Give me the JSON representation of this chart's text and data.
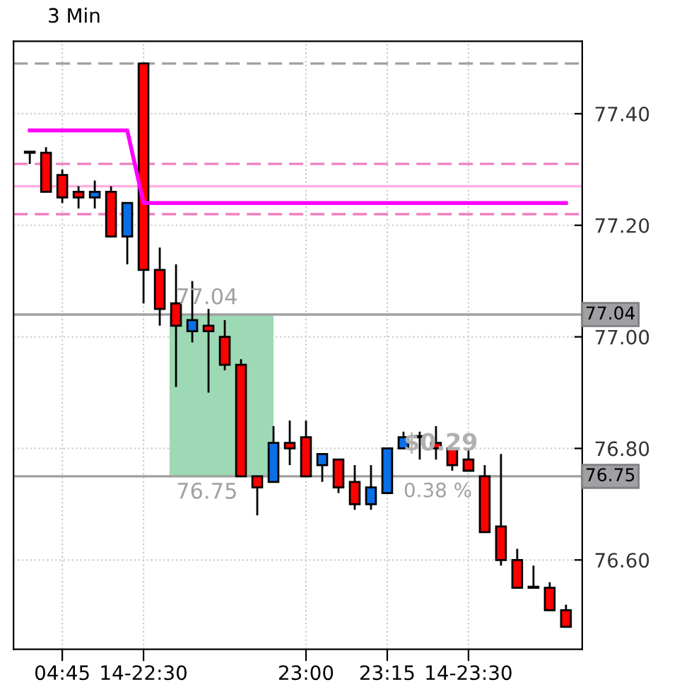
{
  "chart_data": {
    "type": "candlestick",
    "title": "3 Min",
    "categories": [
      null,
      null,
      "04:45",
      null,
      null,
      null,
      null,
      "14-22:30",
      null,
      null,
      null,
      null,
      null,
      null,
      null,
      null,
      null,
      "23:00",
      null,
      null,
      null,
      null,
      "23:15",
      null,
      null,
      null,
      null,
      "14-23:30",
      null,
      null,
      null,
      null,
      null,
      null
    ],
    "ohlc": [
      [
        77.33,
        77.33,
        77.31,
        77.33
      ],
      [
        77.33,
        77.34,
        77.26,
        77.26
      ],
      [
        77.29,
        77.3,
        77.24,
        77.25
      ],
      [
        77.26,
        77.27,
        77.23,
        77.25
      ],
      [
        77.25,
        77.28,
        77.23,
        77.26
      ],
      [
        77.26,
        77.27,
        77.18,
        77.18
      ],
      [
        77.18,
        77.24,
        77.13,
        77.24
      ],
      [
        77.49,
        77.49,
        77.06,
        77.12
      ],
      [
        77.12,
        77.16,
        77.02,
        77.05
      ],
      [
        77.06,
        77.13,
        76.91,
        77.02
      ],
      [
        77.01,
        77.1,
        76.99,
        77.03
      ],
      [
        77.02,
        77.05,
        76.9,
        77.01
      ],
      [
        77.0,
        77.03,
        76.94,
        76.95
      ],
      [
        76.95,
        76.96,
        76.75,
        76.75
      ],
      [
        76.75,
        76.75,
        76.68,
        76.73
      ],
      [
        76.74,
        76.84,
        76.74,
        76.81
      ],
      [
        76.81,
        76.85,
        76.77,
        76.8
      ],
      [
        76.82,
        76.85,
        76.75,
        76.75
      ],
      [
        76.77,
        76.79,
        76.74,
        76.79
      ],
      [
        76.78,
        76.78,
        76.72,
        76.73
      ],
      [
        76.74,
        76.77,
        76.69,
        76.7
      ],
      [
        76.7,
        76.77,
        76.69,
        76.73
      ],
      [
        76.72,
        76.8,
        76.72,
        76.8
      ],
      [
        76.8,
        76.83,
        76.8,
        76.82
      ],
      [
        76.82,
        76.83,
        76.78,
        76.82
      ],
      [
        76.81,
        76.84,
        76.78,
        76.8
      ],
      [
        76.8,
        76.8,
        76.76,
        76.77
      ],
      [
        76.78,
        76.8,
        76.76,
        76.76
      ],
      [
        76.75,
        76.77,
        76.65,
        76.65
      ],
      [
        76.66,
        76.79,
        76.59,
        76.6
      ],
      [
        76.6,
        76.62,
        76.55,
        76.55
      ],
      [
        76.55,
        76.59,
        76.55,
        76.55
      ],
      [
        76.55,
        76.56,
        76.51,
        76.51
      ],
      [
        76.51,
        76.52,
        76.48,
        76.48
      ]
    ],
    "colors": [
      "#ff0000",
      "#ff0000",
      "#ff0000",
      "#ff0000",
      "#0a6ee6",
      "#ff0000",
      "#0a6ee6",
      "#ff0000",
      "#ff0000",
      "#ff0000",
      "#0a6ee6",
      "#ff0000",
      "#ff0000",
      "#ff0000",
      "#ff0000",
      "#0a6ee6",
      "#ff0000",
      "#ff0000",
      "#0a6ee6",
      "#ff0000",
      "#ff0000",
      "#0a6ee6",
      "#0a6ee6",
      "#0a6ee6",
      "#ff0000",
      "#ff0000",
      "#ff0000",
      "#ff0000",
      "#ff0000",
      "#ff0000",
      "#ff0000",
      "#ff0000",
      "#ff0000",
      "#ff0000"
    ],
    "series": [
      {
        "type": "line",
        "color": "#ff00ff",
        "values": [
          77.37,
          77.37,
          77.37,
          77.37,
          77.37,
          77.37,
          77.37,
          77.24,
          77.24,
          77.24,
          77.24,
          77.24,
          77.24,
          77.24,
          77.24,
          77.24,
          77.24,
          77.24,
          77.24,
          77.24,
          77.24,
          77.24,
          77.24,
          77.24,
          77.24,
          77.24,
          77.24,
          77.24,
          77.24,
          77.24,
          77.24,
          77.24,
          77.24,
          77.24
        ]
      }
    ],
    "ylim": [
      76.44,
      77.53
    ],
    "yticks": [
      {
        "value": 76.6,
        "label": "76.60"
      },
      {
        "value": 76.8,
        "label": "76.80"
      },
      {
        "value": 77.0,
        "label": "77.00"
      },
      {
        "value": 77.2,
        "label": "77.20"
      },
      {
        "value": 77.4,
        "label": "77.40"
      }
    ],
    "ref_lines": [
      {
        "axis": "y",
        "value": 77.49,
        "color": "#a0a0a0",
        "line_style": "dashed"
      },
      {
        "axis": "y",
        "value": 77.31,
        "color": "#f080c0",
        "line_style": "dashed"
      },
      {
        "axis": "y",
        "value": 77.27,
        "color": "#ffb0e0",
        "line_style": "solid"
      },
      {
        "axis": "y",
        "value": 77.22,
        "color": "#f080c0",
        "line_style": "dashed"
      },
      {
        "axis": "y",
        "value": 77.04,
        "label": "77.04",
        "color": "#a0a0a0",
        "line_style": "solid"
      },
      {
        "axis": "y",
        "value": 76.75,
        "label": "76.75",
        "color": "#a0a0a0",
        "line_style": "solid"
      }
    ],
    "bands": [
      {
        "axis": "y",
        "from": 76.75,
        "to": 77.04,
        "color": "#9dd9b5"
      }
    ],
    "annotations": [
      {
        "text": "77.04",
        "y": 77.04
      },
      {
        "text": "76.75",
        "y": 76.75
      },
      {
        "text": "$0.29",
        "y": 76.78
      },
      {
        "text": "0.38 %",
        "y": 76.75
      }
    ],
    "grid": "dotted"
  }
}
